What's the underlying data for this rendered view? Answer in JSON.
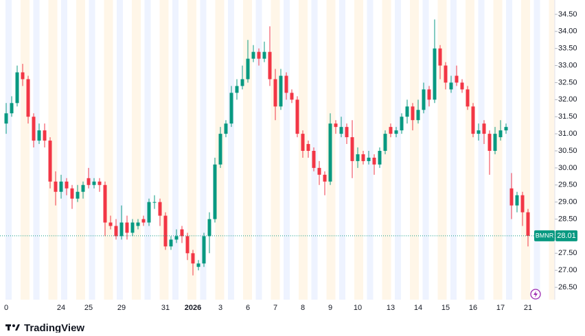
{
  "chart_data": {
    "type": "candlestick",
    "categories": [
      "0",
      null,
      null,
      null,
      null,
      null,
      null,
      null,
      null,
      null,
      "24",
      null,
      null,
      null,
      null,
      "25",
      null,
      null,
      null,
      null,
      null,
      "29",
      null,
      null,
      null,
      null,
      null,
      null,
      null,
      "31",
      null,
      null,
      null,
      null,
      "2026",
      null,
      null,
      null,
      null,
      "3",
      null,
      null,
      null,
      null,
      "6",
      null,
      null,
      null,
      null,
      "7",
      null,
      null,
      null,
      null,
      "8",
      null,
      null,
      null,
      null,
      "9",
      null,
      null,
      null,
      null,
      "10",
      null,
      null,
      null,
      null,
      null,
      "13",
      null,
      null,
      null,
      null,
      "14",
      null,
      null,
      null,
      null,
      "15",
      null,
      null,
      null,
      null,
      "16",
      null,
      null,
      null,
      null,
      "17",
      null,
      null,
      null,
      null,
      "21"
    ],
    "open": [
      31.3,
      31.6,
      31.9,
      32.8,
      32.6,
      31.5,
      30.8,
      31.1,
      30.8,
      29.6,
      29.3,
      29.6,
      29.4,
      29.1,
      29.3,
      29.7,
      29.5,
      29.6,
      29.5,
      28.4,
      28.3,
      28.0,
      28.4,
      28.1,
      28.3,
      28.5,
      28.4,
      29.0,
      29.0,
      28.6,
      27.7,
      27.9,
      28.2,
      28.0,
      27.5,
      27.1,
      27.2,
      28.0,
      28.5,
      30.1,
      31.0,
      31.3,
      32.2,
      32.4,
      32.6,
      33.2,
      33.4,
      33.2,
      33.4,
      32.6,
      31.8,
      32.7,
      32.2,
      32.0,
      31.0,
      30.7,
      30.5,
      30.0,
      29.8,
      29.6,
      31.3,
      31.0,
      31.2,
      30.9,
      30.2,
      30.4,
      30.2,
      30.3,
      30.1,
      30.5,
      31.2,
      31.0,
      31.1,
      31.5,
      31.8,
      31.4,
      31.7,
      32.3,
      32.0,
      33.5,
      33.0,
      32.3,
      32.7,
      32.5,
      32.3,
      31.8,
      31.0,
      31.3,
      31.0,
      30.5,
      30.9,
      31.1,
      29.4,
      28.9,
      29.2,
      28.7
    ],
    "high": [
      31.9,
      32.1,
      33.0,
      33.05,
      32.7,
      31.6,
      31.3,
      31.3,
      30.9,
      29.9,
      29.8,
      29.7,
      29.5,
      29.5,
      29.6,
      30.0,
      29.7,
      29.7,
      29.6,
      28.6,
      28.5,
      28.9,
      28.6,
      28.5,
      28.5,
      28.6,
      29.1,
      29.2,
      29.1,
      28.7,
      28.0,
      28.2,
      28.3,
      28.1,
      27.6,
      27.3,
      28.1,
      28.7,
      30.3,
      31.2,
      31.4,
      32.4,
      32.6,
      33.0,
      33.75,
      33.6,
      33.5,
      33.7,
      34.15,
      32.9,
      32.9,
      32.8,
      32.3,
      32.1,
      31.1,
      30.8,
      30.6,
      30.2,
      29.9,
      31.6,
      31.4,
      31.5,
      31.3,
      31.4,
      30.6,
      30.5,
      30.5,
      30.4,
      30.6,
      31.1,
      31.3,
      31.2,
      31.6,
      32.0,
      31.9,
      32.0,
      32.5,
      32.4,
      34.35,
      33.6,
      33.1,
      32.7,
      33.0,
      32.6,
      32.4,
      31.9,
      31.3,
      31.4,
      31.1,
      31.2,
      31.4,
      31.3,
      29.85,
      29.3,
      29.3,
      28.8
    ],
    "low": [
      31.0,
      31.5,
      31.8,
      32.4,
      31.3,
      30.6,
      30.7,
      30.6,
      29.4,
      28.9,
      29.1,
      29.2,
      28.8,
      29.0,
      29.1,
      29.4,
      29.4,
      29.3,
      28.0,
      28.2,
      27.9,
      27.9,
      27.9,
      28.0,
      28.2,
      28.3,
      28.3,
      28.8,
      28.3,
      27.6,
      27.6,
      27.8,
      27.8,
      27.3,
      26.85,
      27.0,
      27.1,
      27.5,
      28.4,
      30.0,
      30.9,
      31.2,
      32.0,
      32.3,
      32.5,
      33.1,
      33.0,
      33.1,
      32.4,
      31.4,
      31.7,
      32.0,
      31.9,
      30.9,
      30.3,
      30.3,
      29.9,
      29.5,
      29.2,
      29.5,
      31.0,
      30.9,
      30.7,
      29.7,
      30.0,
      30.1,
      30.1,
      29.8,
      30.0,
      30.4,
      30.9,
      30.9,
      31.0,
      31.3,
      31.1,
      31.3,
      31.6,
      31.8,
      31.9,
      32.6,
      32.3,
      32.2,
      32.4,
      32.2,
      31.7,
      30.9,
      30.8,
      30.7,
      29.8,
      30.4,
      30.8,
      31.0,
      28.5,
      28.7,
      28.3,
      27.7
    ],
    "close": [
      31.6,
      31.9,
      32.8,
      32.6,
      31.5,
      30.8,
      31.1,
      30.8,
      29.6,
      29.3,
      29.6,
      29.4,
      29.1,
      29.3,
      29.5,
      29.5,
      29.6,
      29.5,
      28.4,
      28.3,
      28.0,
      28.4,
      28.1,
      28.4,
      28.4,
      28.4,
      29.0,
      29.0,
      28.6,
      27.7,
      27.9,
      28.0,
      28.0,
      27.5,
      27.2,
      27.2,
      28.0,
      28.5,
      30.1,
      31.0,
      31.3,
      32.2,
      32.4,
      32.6,
      33.2,
      33.4,
      33.2,
      33.4,
      32.6,
      31.8,
      32.7,
      32.2,
      32.0,
      31.0,
      30.5,
      30.5,
      30.0,
      29.8,
      29.6,
      31.3,
      31.2,
      31.2,
      30.9,
      30.2,
      30.4,
      30.2,
      30.3,
      30.1,
      30.5,
      31.0,
      31.0,
      31.1,
      31.5,
      31.8,
      31.4,
      31.7,
      32.3,
      32.0,
      33.5,
      33.0,
      32.5,
      32.5,
      32.5,
      32.3,
      31.8,
      31.0,
      31.1,
      31.0,
      30.5,
      31.0,
      31.1,
      31.2,
      28.9,
      29.2,
      28.7,
      28.01
    ],
    "up_color": "#089981",
    "down_color": "#f23645",
    "ylim": [
      26.14,
      34.92
    ],
    "yticks": [
      {
        "value": 26.5,
        "label": "26.50"
      },
      {
        "value": 27,
        "label": "27.00"
      },
      {
        "value": 27.5,
        "label": "27.50"
      },
      {
        "value": 28,
        "label": "28.00"
      },
      {
        "value": 28.5,
        "label": "28.50"
      },
      {
        "value": 29,
        "label": "29.00"
      },
      {
        "value": 29.5,
        "label": "29.50"
      },
      {
        "value": 30,
        "label": "30.00"
      },
      {
        "value": 30.5,
        "label": "30.50"
      },
      {
        "value": 31,
        "label": "31.00"
      },
      {
        "value": 31.5,
        "label": "31.50"
      },
      {
        "value": 32,
        "label": "32.00"
      },
      {
        "value": 32.5,
        "label": "32.50"
      },
      {
        "value": 33,
        "label": "33.00"
      },
      {
        "value": 33.5,
        "label": "33.50"
      },
      {
        "value": 34,
        "label": "34.00"
      },
      {
        "value": 34.5,
        "label": "34.50"
      }
    ],
    "last_price": {
      "symbol": "BMNR",
      "value": 28.01,
      "color": "#089981"
    }
  },
  "footer": {
    "brand": "TradingView"
  }
}
